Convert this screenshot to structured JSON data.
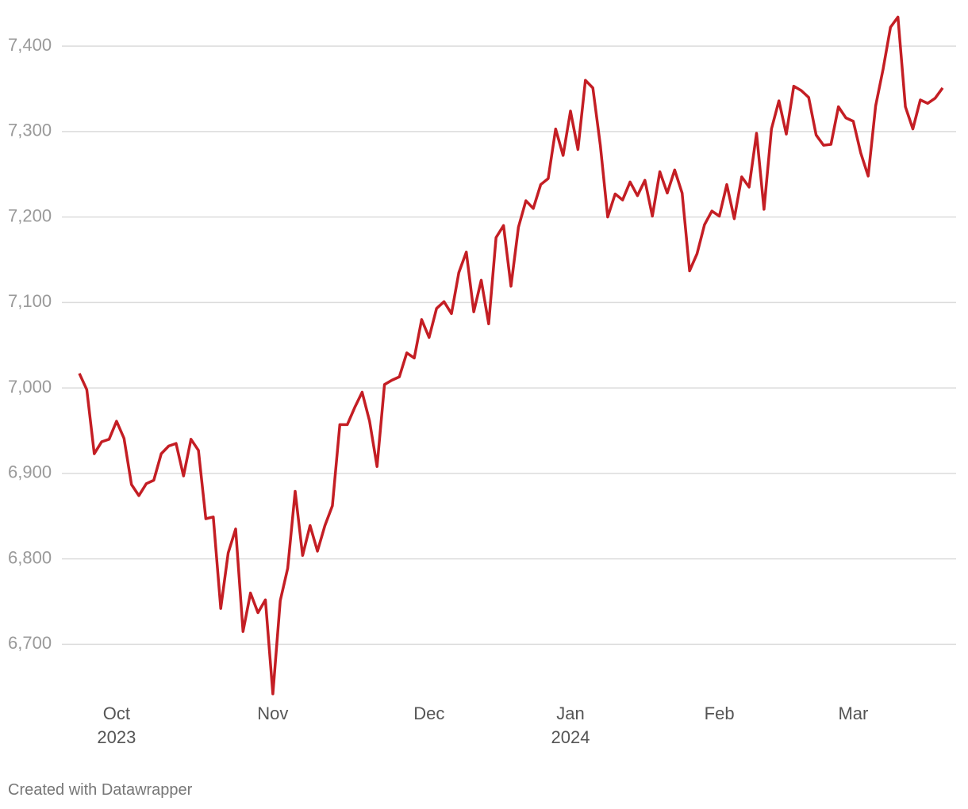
{
  "chart_data": {
    "type": "line",
    "categories": [
      null,
      null,
      null,
      null,
      null,
      "Oct\n2023",
      null,
      null,
      null,
      null,
      null,
      null,
      null,
      null,
      null,
      null,
      null,
      null,
      null,
      null,
      null,
      null,
      null,
      null,
      null,
      null,
      "Nov",
      null,
      null,
      null,
      null,
      null,
      null,
      null,
      null,
      null,
      null,
      null,
      null,
      null,
      null,
      null,
      null,
      null,
      null,
      null,
      null,
      "Dec",
      null,
      null,
      null,
      null,
      null,
      null,
      null,
      null,
      null,
      null,
      null,
      null,
      null,
      null,
      null,
      null,
      null,
      null,
      "Jan\n2024",
      null,
      null,
      null,
      null,
      null,
      null,
      null,
      null,
      null,
      null,
      null,
      null,
      null,
      null,
      null,
      null,
      null,
      null,
      null,
      "Feb",
      null,
      null,
      null,
      null,
      null,
      null,
      null,
      null,
      null,
      null,
      null,
      null,
      null,
      null,
      null,
      null,
      null,
      "Mar",
      null,
      null,
      null,
      null,
      null,
      null,
      null,
      null,
      null,
      null,
      null,
      null
    ],
    "values": [
      7017,
      6998,
      6923,
      6937,
      6940,
      6961,
      6941,
      6887,
      6874,
      6888,
      6892,
      6923,
      6932,
      6935,
      6897,
      6940,
      6927,
      6847,
      6849,
      6742,
      6807,
      6835,
      6715,
      6760,
      6737,
      6752,
      6642,
      6751,
      6789,
      6879,
      6804,
      6839,
      6809,
      6839,
      6862,
      6957,
      6957,
      6977,
      6995,
      6961,
      6908,
      7004,
      7009,
      7013,
      7041,
      7035,
      7080,
      7059,
      7093,
      7101,
      7087,
      7135,
      7159,
      7089,
      7126,
      7075,
      7176,
      7190,
      7119,
      7188,
      7219,
      7210,
      7238,
      7245,
      7303,
      7272,
      7324,
      7279,
      7360,
      7351,
      7284,
      7200,
      7227,
      7220,
      7241,
      7225,
      7243,
      7201,
      7253,
      7228,
      7255,
      7228,
      7137,
      7157,
      7191,
      7207,
      7201,
      7238,
      7198,
      7247,
      7235,
      7298,
      7209,
      7303,
      7336,
      7297,
      7353,
      7348,
      7340,
      7296,
      7284,
      7285,
      7329,
      7316,
      7312,
      7275,
      7248,
      7330,
      7373,
      7422,
      7434,
      7329,
      7303,
      7337,
      7333,
      7339,
      7351
    ],
    "color": "#c41e24",
    "ylim": [
      6640,
      7440
    ],
    "yticks": [
      {
        "value": 6700,
        "label": "6,700"
      },
      {
        "value": 6800,
        "label": "6,800"
      },
      {
        "value": 6900,
        "label": "6,900"
      },
      {
        "value": 7000,
        "label": "7,000"
      },
      {
        "value": 7100,
        "label": "7,100"
      },
      {
        "value": 7200,
        "label": "7,200"
      },
      {
        "value": 7300,
        "label": "7,300"
      },
      {
        "value": 7400,
        "label": "7,400"
      }
    ],
    "grid": true,
    "credit": "Created with Datawrapper"
  }
}
